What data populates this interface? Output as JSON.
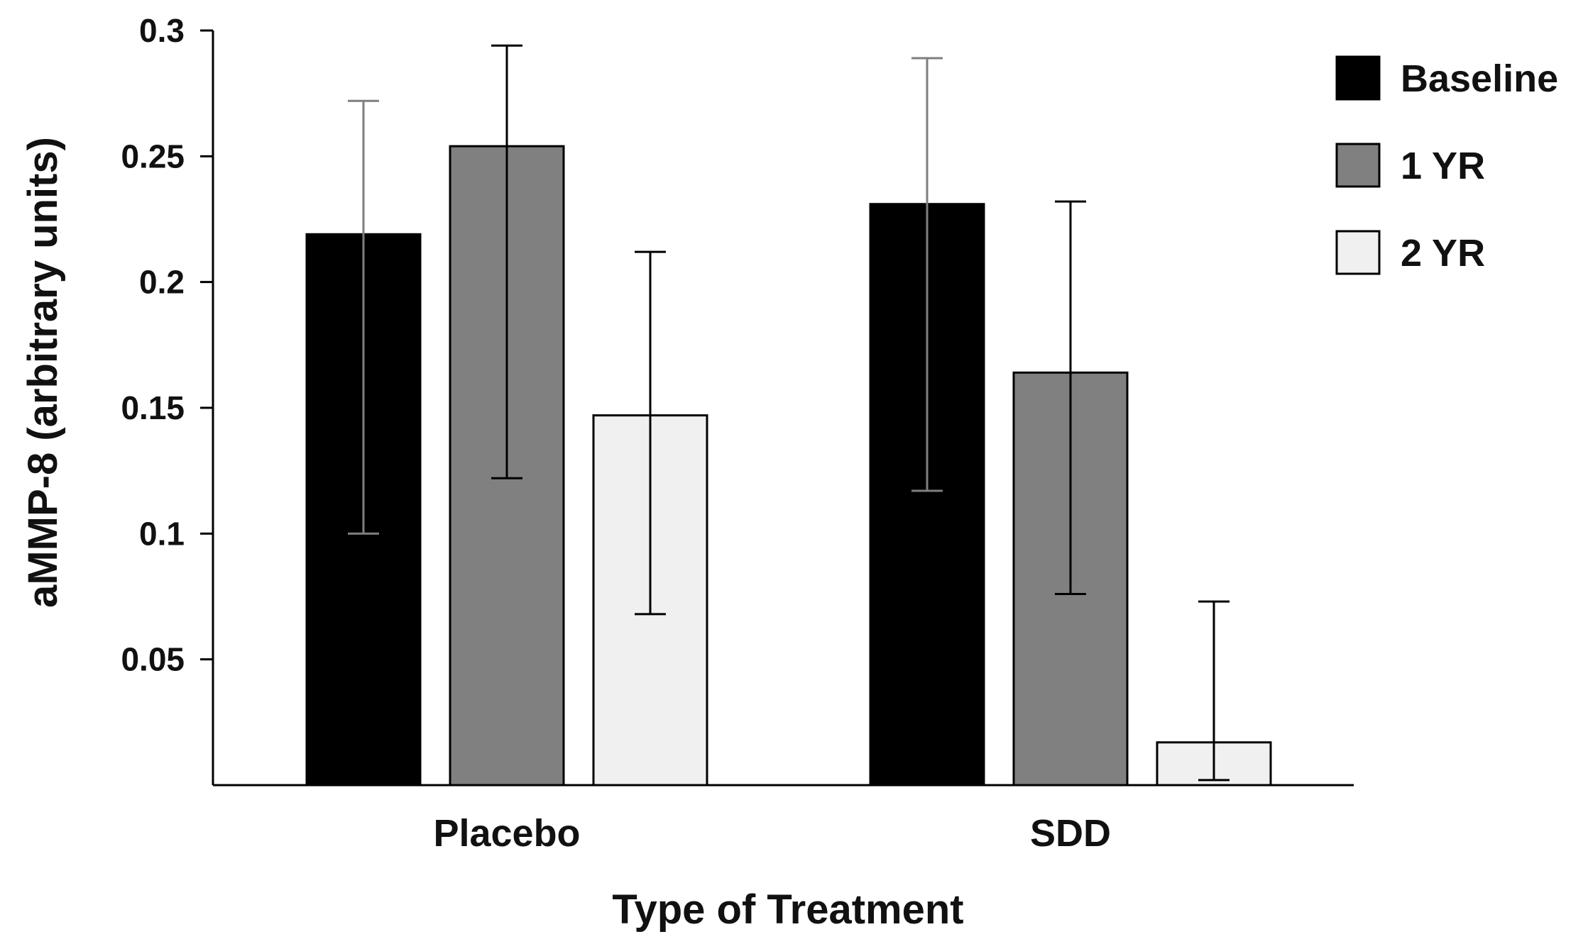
{
  "chart_data": {
    "type": "bar",
    "title": "",
    "xlabel": "Type of Treatment",
    "ylabel": "aMMP-8  (arbitrary units)",
    "ylim": [
      0,
      0.3
    ],
    "yticks": [
      {
        "value": 0.05,
        "label": "0.05"
      },
      {
        "value": 0.1,
        "label": "0.1"
      },
      {
        "value": 0.15,
        "label": "0.15"
      },
      {
        "value": 0.2,
        "label": "0.2"
      },
      {
        "value": 0.25,
        "label": "0.25"
      },
      {
        "value": 0.3,
        "label": "0.3"
      }
    ],
    "categories": [
      "Placebo",
      "SDD"
    ],
    "grid": false,
    "legend_position": "top-right",
    "series": [
      {
        "name": "Baseline",
        "color": "#000000",
        "errorbar_color": "#7f7f7f",
        "values": [
          0.219,
          0.231
        ],
        "err_high": [
          0.272,
          0.289
        ],
        "err_low": [
          0.1,
          0.117
        ]
      },
      {
        "name": "1 YR",
        "color": "#808080",
        "errorbar_color": "#000000",
        "values": [
          0.254,
          0.164
        ],
        "err_high": [
          0.294,
          0.232
        ],
        "err_low": [
          0.122,
          0.076
        ]
      },
      {
        "name": "2 YR",
        "color": "#f0f0f0",
        "errorbar_color": "#000000",
        "values": [
          0.147,
          0.017
        ],
        "err_high": [
          0.212,
          0.073
        ],
        "err_low": [
          0.068,
          0.002
        ]
      }
    ]
  }
}
